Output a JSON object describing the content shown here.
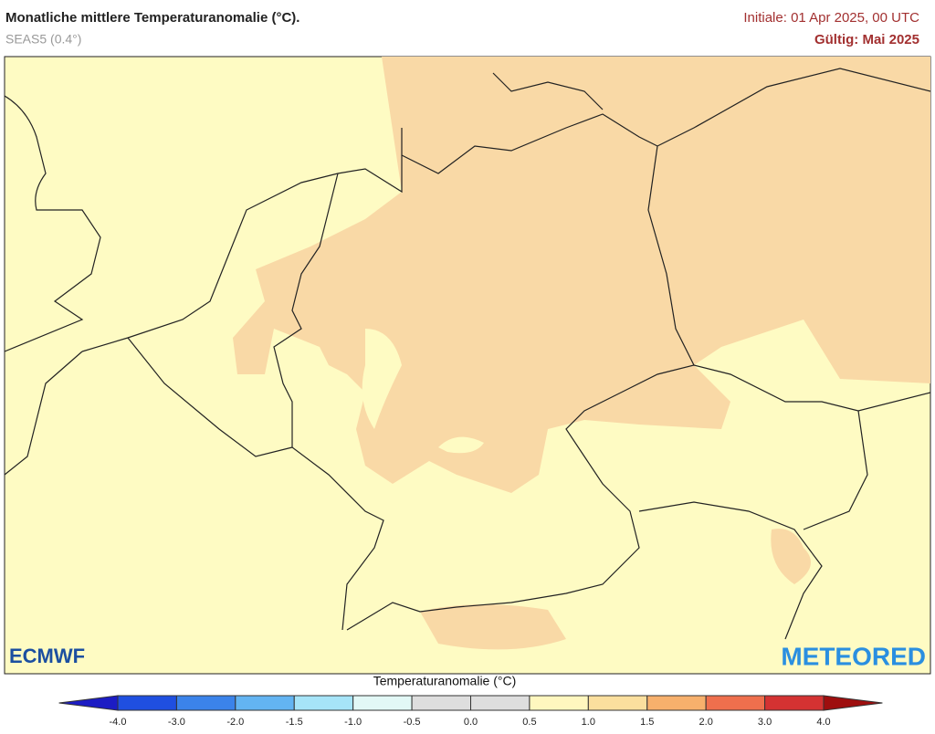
{
  "header": {
    "title": "Monatliche mittlere Temperaturanomalie (°C).",
    "subtitle": "SEAS5 (0.4°)",
    "initiale": "Initiale: 01 Apr 2025, 00 UTC",
    "valid": "Gültig: Mai 2025"
  },
  "logos": {
    "left": "ECMWF",
    "right": "METEORED"
  },
  "legend": {
    "title": "Temperaturanomalie (°C)",
    "ticks": [
      "-4.0",
      "-3.0",
      "-2.0",
      "-1.5",
      "-1.0",
      "-0.5",
      "0.0",
      "0.5",
      "1.0",
      "1.5",
      "2.0",
      "3.0",
      "4.0"
    ],
    "colors": [
      "#1c1cc4",
      "#1f4fe0",
      "#3b83ea",
      "#63b4f2",
      "#a6e4f8",
      "#e2f8f6",
      "#dedede",
      "#dedede",
      "#fff7bf",
      "#fbdf9e",
      "#f7b06c",
      "#ef6f4d",
      "#d43232",
      "#9e0e0e"
    ]
  }
}
